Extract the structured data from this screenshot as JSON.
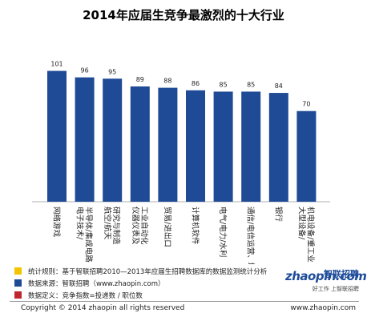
{
  "chart_data": {
    "type": "bar",
    "title": "2014年应届生竞争最激烈的十大行业",
    "categories": [
      "网络游戏",
      "半导体/集成电路 电子技术/",
      "研究与制造 航空/航天",
      "工业自动化 仪器仪表及",
      "贸易/进出口",
      "计算机软件",
      "电气/电力/水利",
      "通信/电信运营、增值服务",
      "银行",
      "机电设备/重工业 大型设备/"
    ],
    "values": [
      101,
      96,
      95,
      89,
      88,
      86,
      85,
      85,
      84,
      70
    ],
    "ylim": [
      0,
      110
    ],
    "grid": false,
    "bar_color": "#1f4a96"
  },
  "notes": [
    {
      "text": "统计规则：基于智联招聘2010—2013年应届生招聘数据库的数据监测统计分析",
      "color": "#f2c500"
    },
    {
      "text": "数据来源：智联招聘（www.zhaopin.com）",
      "color": "#1f4a96"
    },
    {
      "text": "数据定义：竞争指数=投递数 / 职位数",
      "color": "#c0262d"
    }
  ],
  "logo": {
    "main": "zhaopin.com",
    "cn": "智联招聘",
    "sub": "好工作 上智联招聘"
  },
  "footer": {
    "copyright": "Copyright  ©  2014 zhaopin all rights reserved",
    "url": "www.zhaopin.com"
  }
}
